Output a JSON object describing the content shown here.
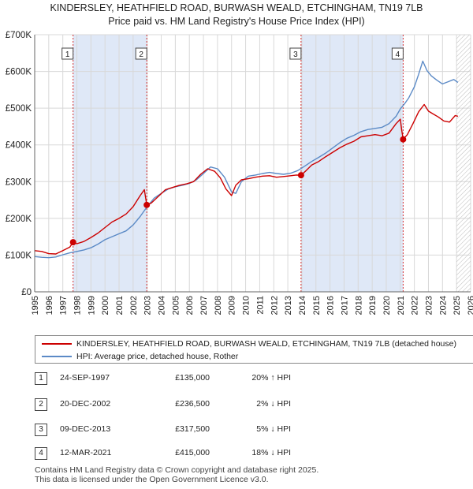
{
  "chart_data": {
    "type": "line",
    "title": "KINDERSLEY, HEATHFIELD ROAD, BURWASH WEALD, ETCHINGHAM, TN19 7LB",
    "subtitle": "Price paid vs. HM Land Registry's House Price Index (HPI)",
    "xlabel": "",
    "ylabel": "",
    "xlim": [
      1995,
      2026
    ],
    "ylim": [
      0,
      700000
    ],
    "y_ticks": [
      0,
      100000,
      200000,
      300000,
      400000,
      500000,
      600000,
      700000
    ],
    "y_tick_labels": [
      "£0",
      "£100K",
      "£200K",
      "£300K",
      "£400K",
      "£500K",
      "£600K",
      "£700K"
    ],
    "x_ticks": [
      1995,
      1996,
      1997,
      1998,
      1999,
      2000,
      2001,
      2002,
      2003,
      2004,
      2005,
      2006,
      2007,
      2008,
      2009,
      2010,
      2011,
      2012,
      2013,
      2014,
      2015,
      2016,
      2017,
      2018,
      2019,
      2020,
      2021,
      2022,
      2023,
      2024,
      2025,
      2026
    ],
    "x_tick_labels": [
      "1995",
      "1996",
      "1997",
      "1998",
      "1999",
      "2000",
      "2001",
      "2002",
      "2003",
      "2004",
      "2005",
      "2006",
      "2007",
      "2008",
      "2009",
      "2010",
      "2011",
      "2012",
      "2013",
      "2014",
      "2015",
      "2016",
      "2017",
      "2018",
      "2019",
      "2020",
      "2021",
      "2022",
      "2023",
      "2024",
      "2025",
      "2026"
    ],
    "grid": true,
    "hatch_after": 2025.0,
    "shaded_ranges": [
      [
        1997.73,
        2002.97
      ],
      [
        2013.94,
        2021.2
      ]
    ],
    "series": [
      {
        "name": "KINDERSLEY, HEATHFIELD ROAD, BURWASH WEALD, ETCHINGHAM, TN19 7LB (detached house)",
        "color": "#cc0000",
        "x": [
          1995.0,
          1995.5,
          1996.0,
          1996.5,
          1997.0,
          1997.5,
          1997.73,
          1998.0,
          1998.5,
          1999.0,
          1999.5,
          2000.0,
          2000.5,
          2001.0,
          2001.5,
          2002.0,
          2002.5,
          2002.8,
          2002.97,
          2003.3,
          2003.8,
          2004.3,
          2004.8,
          2005.3,
          2005.8,
          2006.3,
          2006.8,
          2007.3,
          2007.8,
          2008.2,
          2008.6,
          2009.0,
          2009.3,
          2009.7,
          2010.2,
          2010.7,
          2011.2,
          2011.7,
          2012.2,
          2012.7,
          2013.2,
          2013.6,
          2013.94,
          2014.3,
          2014.7,
          2015.2,
          2015.7,
          2016.2,
          2016.7,
          2017.2,
          2017.7,
          2018.2,
          2018.7,
          2019.2,
          2019.7,
          2020.2,
          2020.7,
          2021.0,
          2021.1,
          2021.2,
          2021.5,
          2021.9,
          2022.3,
          2022.7,
          2023.0,
          2023.3,
          2023.7,
          2024.1,
          2024.5,
          2024.9,
          2025.1
        ],
        "values": [
          112000,
          110000,
          104000,
          103000,
          112000,
          122000,
          135000,
          131000,
          137000,
          148000,
          160000,
          175000,
          190000,
          200000,
          212000,
          232000,
          262000,
          278000,
          236500,
          242000,
          260000,
          278000,
          284000,
          290000,
          294000,
          300000,
          320000,
          335000,
          328000,
          310000,
          280000,
          262000,
          290000,
          305000,
          308000,
          312000,
          315000,
          316000,
          312000,
          314000,
          316000,
          318000,
          317500,
          330000,
          345000,
          355000,
          368000,
          380000,
          392000,
          402000,
          410000,
          422000,
          425000,
          428000,
          425000,
          432000,
          458000,
          470000,
          440000,
          415000,
          428000,
          458000,
          490000,
          510000,
          492000,
          485000,
          476000,
          465000,
          462000,
          480000,
          478000
        ]
      },
      {
        "name": "HPI: Average price, detached house, Rother",
        "color": "#5b8ac6",
        "x": [
          1995.0,
          1995.5,
          1996.0,
          1996.5,
          1997.0,
          1997.5,
          1998.0,
          1998.5,
          1999.0,
          1999.5,
          2000.0,
          2000.5,
          2001.0,
          2001.5,
          2002.0,
          2002.5,
          2003.0,
          2003.5,
          2004.0,
          2004.5,
          2005.0,
          2005.5,
          2006.0,
          2006.5,
          2007.0,
          2007.5,
          2008.0,
          2008.5,
          2009.0,
          2009.3,
          2009.7,
          2010.2,
          2010.7,
          2011.2,
          2011.7,
          2012.2,
          2012.7,
          2013.2,
          2013.7,
          2014.2,
          2014.7,
          2015.2,
          2015.7,
          2016.2,
          2016.7,
          2017.2,
          2017.7,
          2018.2,
          2018.7,
          2019.2,
          2019.7,
          2020.2,
          2020.7,
          2021.0,
          2021.3,
          2021.6,
          2022.0,
          2022.3,
          2022.6,
          2022.9,
          2023.2,
          2023.6,
          2024.0,
          2024.4,
          2024.8,
          2025.1
        ],
        "values": [
          96000,
          94000,
          93000,
          95000,
          101000,
          106000,
          110000,
          114000,
          120000,
          130000,
          142000,
          150000,
          158000,
          166000,
          182000,
          205000,
          232000,
          255000,
          268000,
          280000,
          286000,
          290000,
          295000,
          305000,
          322000,
          340000,
          335000,
          312000,
          272000,
          268000,
          300000,
          315000,
          318000,
          322000,
          325000,
          322000,
          320000,
          323000,
          330000,
          342000,
          355000,
          366000,
          378000,
          392000,
          406000,
          418000,
          426000,
          436000,
          442000,
          445000,
          448000,
          458000,
          478000,
          498000,
          512000,
          528000,
          558000,
          592000,
          628000,
          602000,
          588000,
          576000,
          566000,
          572000,
          578000,
          570000
        ]
      }
    ],
    "sale_markers": [
      {
        "label": "1",
        "x": 1997.73,
        "value": 135000
      },
      {
        "label": "2",
        "x": 2002.97,
        "value": 236500
      },
      {
        "label": "3",
        "x": 2013.94,
        "value": 317500
      },
      {
        "label": "4",
        "x": 2021.2,
        "value": 415000
      }
    ]
  },
  "legend": {
    "series_property": "KINDERSLEY, HEATHFIELD ROAD, BURWASH WEALD, ETCHINGHAM, TN19 7LB (detached house)",
    "series_hpi": "HPI: Average price, detached house, Rother"
  },
  "sales": [
    {
      "num": "1",
      "date": "24-SEP-1997",
      "price": "£135,000",
      "hpi": "20% ↑ HPI"
    },
    {
      "num": "2",
      "date": "20-DEC-2002",
      "price": "£236,500",
      "hpi": "2% ↓ HPI"
    },
    {
      "num": "3",
      "date": "09-DEC-2013",
      "price": "£317,500",
      "hpi": "5% ↓ HPI"
    },
    {
      "num": "4",
      "date": "12-MAR-2021",
      "price": "£415,000",
      "hpi": "18% ↓ HPI"
    }
  ],
  "footer": {
    "line1": "Contains HM Land Registry data © Crown copyright and database right 2025.",
    "line2": "This data is licensed under the Open Government Licence v3.0."
  },
  "colors": {
    "property_line": "#cc0000",
    "hpi_line": "#5b8ac6",
    "shade": "#dfe8f7",
    "grid": "#d8d8d8"
  }
}
